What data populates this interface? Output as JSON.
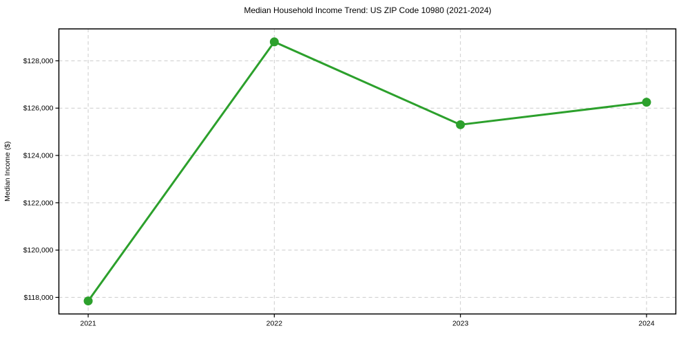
{
  "chart_data": {
    "type": "line",
    "title": "Median Household Income Trend: US ZIP Code 10980 (2021-2024)",
    "xlabel": "",
    "ylabel": "Median Income ($)",
    "categories": [
      "2021",
      "2022",
      "2023",
      "2024"
    ],
    "series": [
      {
        "name": "Median Household Income",
        "values": [
          117850,
          128800,
          125300,
          126250
        ]
      }
    ],
    "ylim": [
      117300,
      129350
    ],
    "yticks": [
      118000,
      120000,
      122000,
      124000,
      126000,
      128000
    ],
    "ytick_labels": [
      "$118,000",
      "$120,000",
      "$122,000",
      "$124,000",
      "$126,000",
      "$128,000"
    ],
    "grid": true,
    "grid_style": "dashed",
    "legend": "none",
    "line_color": "#2ca02c",
    "marker": "circle",
    "marker_color": "#2ca02c",
    "grid_color": "#cccccc",
    "spine_color": "#000000",
    "background": "#ffffff"
  }
}
